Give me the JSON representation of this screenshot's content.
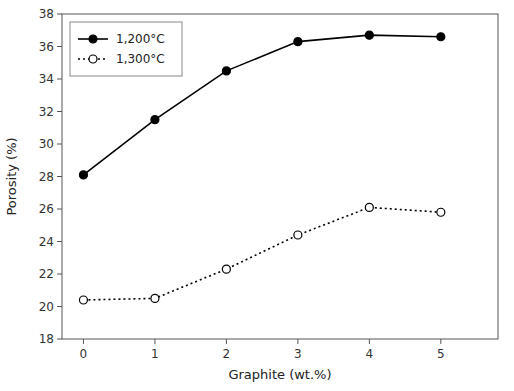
{
  "chart_data": {
    "type": "line",
    "x_label": "Graphite (wt.%)",
    "y_label": "Porosity (%)",
    "x": [
      0,
      1,
      2,
      3,
      4,
      5
    ],
    "series": [
      {
        "name": "1,200°C",
        "color": "black",
        "marker": "filled-circle",
        "line_style": "solid",
        "values": [
          28.1,
          31.5,
          34.5,
          36.3,
          36.7,
          36.6
        ]
      },
      {
        "name": "1,300°C",
        "color": "black",
        "marker": "open-circle",
        "line_style": "dotted",
        "values": [
          20.4,
          20.5,
          22.3,
          24.4,
          26.1,
          25.8
        ]
      }
    ],
    "xlim": [
      -0.3,
      5.8
    ],
    "ylim": [
      18,
      38
    ],
    "xticks": [
      0,
      1,
      2,
      3,
      4,
      5
    ],
    "yticks": [
      18,
      20,
      22,
      24,
      26,
      28,
      30,
      32,
      34,
      36,
      38
    ],
    "grid": false,
    "legend": "upper left"
  }
}
